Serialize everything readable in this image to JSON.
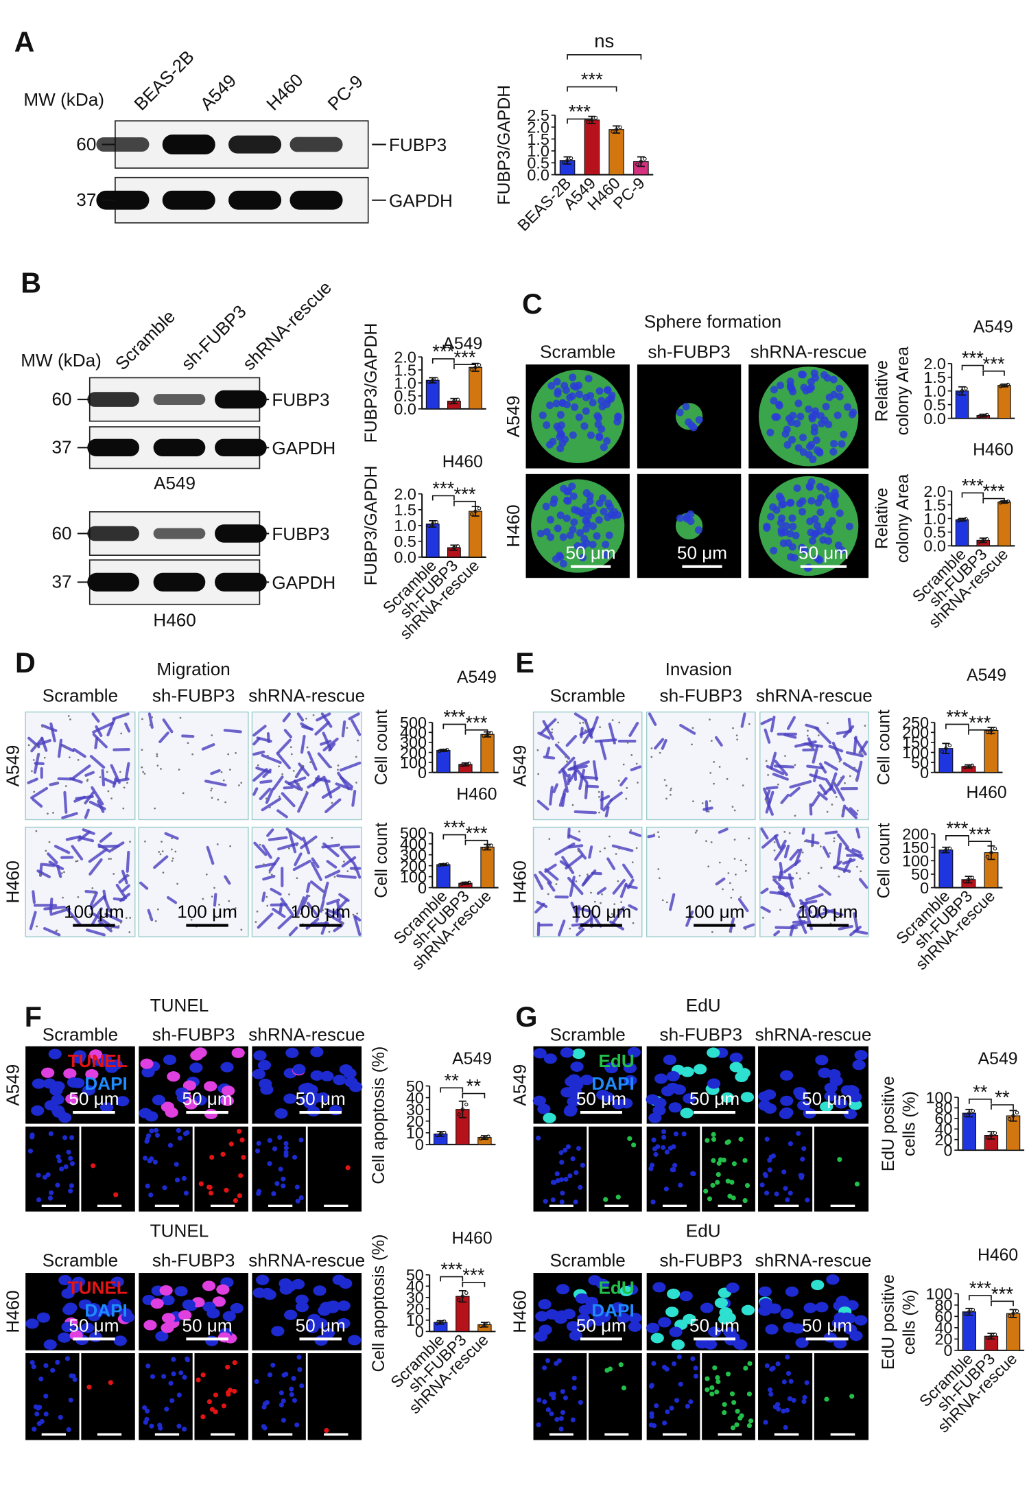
{
  "panel_labels": [
    "A",
    "B",
    "C",
    "D",
    "E",
    "F",
    "G"
  ],
  "blots": [
    {
      "mw_label": "MW (kDa)",
      "lanes": [
        "BEAS-2B",
        "A549",
        "H460",
        "PC-9"
      ],
      "groups": [
        {
          "rows": [
            {
              "mw": 60,
              "protein": "FUBP3"
            },
            {
              "mw": 37,
              "protein": "GAPDH"
            }
          ]
        }
      ]
    },
    {
      "mw_label": "MW (kDa)",
      "lanes": [
        "Scramble",
        "sh-FUBP3",
        "shRNA-rescue"
      ],
      "groups": [
        {
          "rows": [
            {
              "mw": 60,
              "protein": "FUBP3"
            },
            {
              "mw": 37,
              "protein": "GAPDH"
            }
          ],
          "cell_line": "A549"
        },
        {
          "rows": [
            {
              "mw": 60,
              "protein": "FUBP3"
            },
            {
              "mw": 37,
              "protein": "GAPDH"
            }
          ],
          "cell_line": "H460"
        }
      ]
    }
  ],
  "image_panels": [
    {
      "title": "Sphere formation",
      "columns": [
        "Scramble",
        "sh-FUBP3",
        "shRNA-rescue"
      ],
      "rows": [
        "A549",
        "H460"
      ],
      "scale_bar": "50 μm"
    },
    {
      "title": "Migration",
      "columns": [
        "Scramble",
        "sh-FUBP3",
        "shRNA-rescue"
      ],
      "rows": [
        "A549",
        "H460"
      ],
      "scale_bar": "100 μm"
    },
    {
      "title": "Invasion",
      "columns": [
        "Scramble",
        "sh-FUBP3",
        "shRNA-rescue"
      ],
      "rows": [
        "A549",
        "H460"
      ],
      "scale_bar": "100 μm"
    },
    {
      "blocks": [
        {
          "title": "TUNEL",
          "columns": [
            "Scramble",
            "sh-FUBP3",
            "shRNA-rescue"
          ],
          "row": "A549"
        },
        {
          "title": "TUNEL",
          "columns": [
            "Scramble",
            "sh-FUBP3",
            "shRNA-rescue"
          ],
          "row": "H460"
        }
      ],
      "stains": [
        {
          "name": "TUNEL",
          "color": "#e41414"
        },
        {
          "name": "DAPI",
          "color": "#1e8cff"
        }
      ],
      "scale_bar": "50 μm"
    },
    {
      "blocks": [
        {
          "title": "EdU",
          "columns": [
            "Scramble",
            "sh-FUBP3",
            "shRNA-rescue"
          ],
          "row": "A549"
        },
        {
          "title": "EdU",
          "columns": [
            "Scramble",
            "sh-FUBP3",
            "shRNA-rescue"
          ],
          "row": "H460"
        }
      ],
      "stains": [
        {
          "name": "EdU",
          "color": "#22c04a"
        },
        {
          "name": "DAPI",
          "color": "#1e8cff"
        }
      ],
      "scale_bar": "50 μm"
    }
  ],
  "chart_data": [
    {
      "type": "bar",
      "ylabel": [
        "FUBP3/GAPDH"
      ],
      "categories": [
        "BEAS-2B",
        "A549",
        "H460",
        "PC-9"
      ],
      "values": [
        0.6,
        2.3,
        1.9,
        0.55
      ],
      "errors": [
        0.15,
        0.15,
        0.15,
        0.2
      ],
      "colors": [
        "#1f35e0",
        "#b5121b",
        "#d2760f",
        "#d6317f"
      ],
      "ylim": [
        0,
        2.5
      ],
      "yticks": [
        {
          "value": 0,
          "label": "0.0"
        },
        {
          "value": 0.5,
          "label": "0.5"
        },
        {
          "value": 1,
          "label": "1.0"
        },
        {
          "value": 1.5,
          "label": "1.5"
        },
        {
          "value": 2,
          "label": "2.0"
        },
        {
          "value": 2.5,
          "label": "2.5"
        }
      ],
      "annotations": [
        "***",
        "***",
        "ns"
      ]
    },
    {
      "type": "bar",
      "title": "A549",
      "ylabel": [
        "FUBP3/GAPDH"
      ],
      "categories": [
        null,
        null,
        null
      ],
      "values": [
        1.1,
        0.3,
        1.6
      ],
      "errors": [
        0.1,
        0.1,
        0.15
      ],
      "colors": [
        "#1f35e0",
        "#b5121b",
        "#d2760f"
      ],
      "ylim": [
        0,
        2
      ],
      "yticks": [
        {
          "value": 0,
          "label": "0.0"
        },
        {
          "value": 0.5,
          "label": "0.5"
        },
        {
          "value": 1,
          "label": "1.0"
        },
        {
          "value": 1.5,
          "label": "1.5"
        },
        {
          "value": 2,
          "label": "2.0"
        }
      ],
      "annotations": [
        "***",
        "***"
      ]
    },
    {
      "type": "bar",
      "title": "H460",
      "ylabel": [
        "FUBP3/GAPDH"
      ],
      "categories": [
        "Scramble",
        "sh-FUBP3",
        "shRNA-rescue"
      ],
      "values": [
        1.05,
        0.3,
        1.45
      ],
      "errors": [
        0.1,
        0.08,
        0.15
      ],
      "colors": [
        "#1f35e0",
        "#b5121b",
        "#d2760f"
      ],
      "ylim": [
        0,
        2
      ],
      "yticks": [
        {
          "value": 0,
          "label": "0.0"
        },
        {
          "value": 0.5,
          "label": "0.5"
        },
        {
          "value": 1,
          "label": "1.0"
        },
        {
          "value": 1.5,
          "label": "1.5"
        },
        {
          "value": 2,
          "label": "2.0"
        }
      ],
      "annotations": [
        "***",
        "***"
      ]
    },
    {
      "type": "bar",
      "title": "A549",
      "ylabel": [
        "Relative",
        "colony Area"
      ],
      "categories": [
        null,
        null,
        null
      ],
      "values": [
        1.0,
        0.1,
        1.2
      ],
      "errors": [
        0.15,
        0.05,
        0.05
      ],
      "colors": [
        "#1f35e0",
        "#b5121b",
        "#d2760f"
      ],
      "ylim": [
        0,
        2
      ],
      "yticks": [
        {
          "value": 0,
          "label": "0.0"
        },
        {
          "value": 0.5,
          "label": "0.5"
        },
        {
          "value": 1,
          "label": "1.0"
        },
        {
          "value": 1.5,
          "label": "1.5"
        },
        {
          "value": 2,
          "label": "2.0"
        }
      ],
      "annotations": [
        "***",
        "***"
      ]
    },
    {
      "type": "bar",
      "title": "H460",
      "ylabel": [
        "Relative",
        "colony Area"
      ],
      "categories": [
        "Scramble",
        "sh-FUBP3",
        "shRNA-rescue"
      ],
      "values": [
        0.95,
        0.2,
        1.6
      ],
      "errors": [
        0.05,
        0.08,
        0.04
      ],
      "colors": [
        "#1f35e0",
        "#b5121b",
        "#d2760f"
      ],
      "ylim": [
        0,
        2
      ],
      "yticks": [
        {
          "value": 0,
          "label": "0.0"
        },
        {
          "value": 0.5,
          "label": "0.5"
        },
        {
          "value": 1,
          "label": "1.0"
        },
        {
          "value": 1.5,
          "label": "1.5"
        },
        {
          "value": 2,
          "label": "2.0"
        }
      ],
      "annotations": [
        "***",
        "***"
      ]
    },
    {
      "type": "bar",
      "title": "A549",
      "ylabel": [
        "Cell count"
      ],
      "categories": [
        null,
        null,
        null
      ],
      "values": [
        220,
        80,
        380
      ],
      "errors": [
        10,
        15,
        25
      ],
      "colors": [
        "#1f35e0",
        "#b5121b",
        "#d2760f"
      ],
      "ylim": [
        0,
        500
      ],
      "yticks": [
        0,
        100,
        200,
        300,
        400,
        500
      ],
      "annotations": [
        "***",
        "***"
      ]
    },
    {
      "type": "bar",
      "title": "H460",
      "ylabel": [
        "Cell count"
      ],
      "categories": [
        "Scramble",
        "sh-FUBP3",
        "shRNA-rescue"
      ],
      "values": [
        210,
        40,
        370
      ],
      "errors": [
        8,
        10,
        25
      ],
      "colors": [
        "#1f35e0",
        "#b5121b",
        "#d2760f"
      ],
      "ylim": [
        0,
        500
      ],
      "yticks": [
        0,
        100,
        200,
        300,
        400,
        500
      ],
      "annotations": [
        "***",
        "***"
      ]
    },
    {
      "type": "bar",
      "title": "A549",
      "ylabel": [
        "Cell count"
      ],
      "categories": [
        null,
        null,
        null
      ],
      "values": [
        120,
        30,
        210
      ],
      "errors": [
        25,
        8,
        15
      ],
      "colors": [
        "#1f35e0",
        "#b5121b",
        "#d2760f"
      ],
      "ylim": [
        0,
        250
      ],
      "yticks": [
        0,
        50,
        100,
        150,
        200,
        250
      ],
      "annotations": [
        "***",
        "***"
      ]
    },
    {
      "type": "bar",
      "title": "H460",
      "ylabel": [
        "Cell count"
      ],
      "categories": [
        "Scramble",
        "sh-FUBP3",
        "shRNA-rescue"
      ],
      "values": [
        140,
        30,
        130
      ],
      "errors": [
        10,
        12,
        25
      ],
      "colors": [
        "#1f35e0",
        "#b5121b",
        "#d2760f"
      ],
      "ylim": [
        0,
        200
      ],
      "yticks": [
        0,
        50,
        100,
        150,
        200
      ],
      "annotations": [
        "***",
        "***"
      ]
    },
    {
      "type": "bar",
      "title": "A549",
      "ylabel": [
        "Cell apoptosis (%)"
      ],
      "categories": [
        null,
        null,
        null
      ],
      "values": [
        9,
        30,
        6
      ],
      "errors": [
        2,
        7,
        1.5
      ],
      "colors": [
        "#1f35e0",
        "#b5121b",
        "#d2760f"
      ],
      "ylim": [
        0,
        50
      ],
      "yticks": [
        0,
        10,
        20,
        30,
        40,
        50
      ],
      "annotations": [
        "**",
        "**"
      ]
    },
    {
      "type": "bar",
      "title": "H460",
      "ylabel": [
        "Cell apoptosis (%)"
      ],
      "categories": [
        "Scramble",
        "sh-FUBP3",
        "shRNA-rescue"
      ],
      "values": [
        8,
        31,
        6
      ],
      "errors": [
        1.5,
        5,
        2
      ],
      "colors": [
        "#1f35e0",
        "#b5121b",
        "#d2760f"
      ],
      "ylim": [
        0,
        50
      ],
      "yticks": [
        0,
        10,
        20,
        30,
        40,
        50
      ],
      "annotations": [
        "***",
        "***"
      ]
    },
    {
      "type": "bar",
      "title": "A549",
      "ylabel": [
        "EdU positive",
        "cells (%)"
      ],
      "categories": [
        null,
        null,
        null
      ],
      "values": [
        70,
        28,
        65
      ],
      "errors": [
        7,
        7,
        10
      ],
      "colors": [
        "#1f35e0",
        "#b5121b",
        "#d2760f"
      ],
      "ylim": [
        0,
        100
      ],
      "yticks": [
        0,
        20,
        40,
        60,
        80,
        100
      ],
      "annotations": [
        "**",
        "**"
      ]
    },
    {
      "type": "bar",
      "title": "H460",
      "ylabel": [
        "EdU positive",
        "cells (%)"
      ],
      "categories": [
        "Scramble",
        "sh-FUBP3",
        "shRNA-rescue"
      ],
      "values": [
        68,
        25,
        65
      ],
      "errors": [
        6,
        5,
        7
      ],
      "colors": [
        "#1f35e0",
        "#b5121b",
        "#d2760f"
      ],
      "ylim": [
        0,
        100
      ],
      "yticks": [
        0,
        20,
        40,
        60,
        80,
        100
      ],
      "annotations": [
        "***",
        "***"
      ]
    }
  ]
}
